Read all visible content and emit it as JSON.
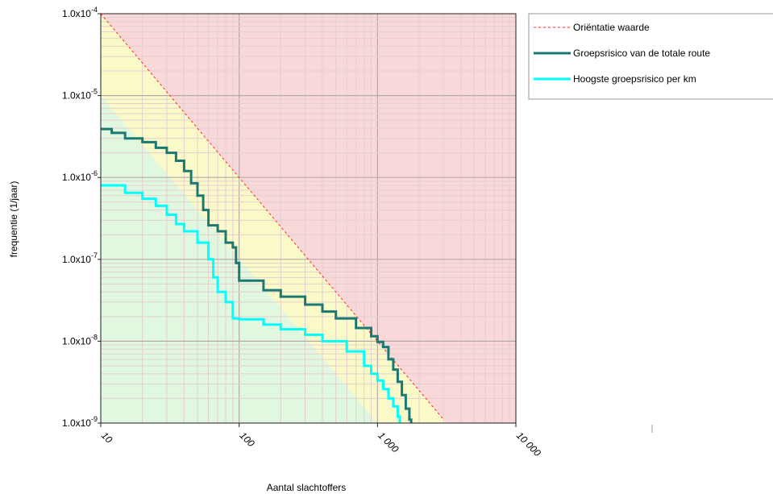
{
  "chart_data": {
    "type": "line",
    "title": "",
    "xlabel": "Aantal slachtoffers",
    "ylabel": "frequentie (1/jaar)",
    "xscale": "log",
    "yscale": "log",
    "xlim": [
      10,
      10000
    ],
    "ylim": [
      1e-09,
      0.0001
    ],
    "x_ticks": [
      10,
      100,
      1000,
      10000
    ],
    "x_tick_labels": [
      "10",
      "100",
      "1 000",
      "10 000"
    ],
    "y_ticks": [
      1e-09,
      1e-08,
      1e-07,
      1e-06,
      1e-05,
      0.0001
    ],
    "y_tick_labels": [
      {
        "base": "1.0x10",
        "exp": "-9"
      },
      {
        "base": "1.0x10",
        "exp": "-8"
      },
      {
        "base": "1.0x10",
        "exp": "-7"
      },
      {
        "base": "1.0x10",
        "exp": "-6"
      },
      {
        "base": "1.0x10",
        "exp": "-5"
      },
      {
        "base": "1.0x10",
        "exp": "-4"
      }
    ],
    "grid": true,
    "legend_position": "top-right, outside plot",
    "background_zones": [
      {
        "name": "red",
        "color": "#f8d8d8"
      },
      {
        "name": "yellow",
        "color": "#fafac8"
      },
      {
        "name": "green",
        "color": "#e0f8e0"
      }
    ],
    "series": [
      {
        "name": "Oriëntatie waarde",
        "color": "#ff2a2a",
        "style": "dashed",
        "points": [
          [
            10,
            0.0001
          ],
          [
            3000,
            1.11e-09
          ]
        ]
      },
      {
        "name": "Groepsrisico van de totale route",
        "color": "#1b7872",
        "style": "solid",
        "points": [
          [
            10,
            3.9e-06
          ],
          [
            12,
            3.5e-06
          ],
          [
            15,
            3e-06
          ],
          [
            20,
            2.7e-06
          ],
          [
            25,
            2.3e-06
          ],
          [
            30,
            2e-06
          ],
          [
            35,
            1.6e-06
          ],
          [
            40,
            1.2e-06
          ],
          [
            45,
            8.5e-07
          ],
          [
            50,
            6e-07
          ],
          [
            55,
            4e-07
          ],
          [
            60,
            2.6e-07
          ],
          [
            70,
            2.2e-07
          ],
          [
            80,
            1.6e-07
          ],
          [
            90,
            1.4e-07
          ],
          [
            95,
            9e-08
          ],
          [
            100,
            5.5e-08
          ],
          [
            150,
            4.2e-08
          ],
          [
            200,
            3.5e-08
          ],
          [
            300,
            2.8e-08
          ],
          [
            400,
            2.3e-08
          ],
          [
            500,
            1.9e-08
          ],
          [
            700,
            1.45e-08
          ],
          [
            900,
            1.15e-08
          ],
          [
            1000,
            9.8e-09
          ],
          [
            1100,
            8.5e-09
          ],
          [
            1200,
            6e-09
          ],
          [
            1300,
            4.5e-09
          ],
          [
            1400,
            3.2e-09
          ],
          [
            1500,
            2.2e-09
          ],
          [
            1600,
            1.5e-09
          ],
          [
            1700,
            1.1e-09
          ],
          [
            1750,
            1e-09
          ]
        ]
      },
      {
        "name": "Hoogste groepsrisico per km",
        "color": "#00ffff",
        "style": "solid",
        "points": [
          [
            10,
            8e-07
          ],
          [
            15,
            6.5e-07
          ],
          [
            20,
            5.5e-07
          ],
          [
            25,
            4.5e-07
          ],
          [
            30,
            3.5e-07
          ],
          [
            35,
            2.7e-07
          ],
          [
            40,
            2.2e-07
          ],
          [
            50,
            1.6e-07
          ],
          [
            60,
            1e-07
          ],
          [
            65,
            6e-08
          ],
          [
            70,
            4e-08
          ],
          [
            80,
            3e-08
          ],
          [
            90,
            1.9e-08
          ],
          [
            100,
            1.85e-08
          ],
          [
            150,
            1.6e-08
          ],
          [
            200,
            1.4e-08
          ],
          [
            300,
            1.2e-08
          ],
          [
            400,
            1e-08
          ],
          [
            600,
            7.5e-09
          ],
          [
            800,
            5e-09
          ],
          [
            900,
            4e-09
          ],
          [
            1000,
            3.3e-09
          ],
          [
            1100,
            2.6e-09
          ],
          [
            1200,
            2e-09
          ],
          [
            1300,
            1.6e-09
          ],
          [
            1400,
            1.2e-09
          ],
          [
            1450,
            1e-09
          ]
        ]
      }
    ]
  }
}
